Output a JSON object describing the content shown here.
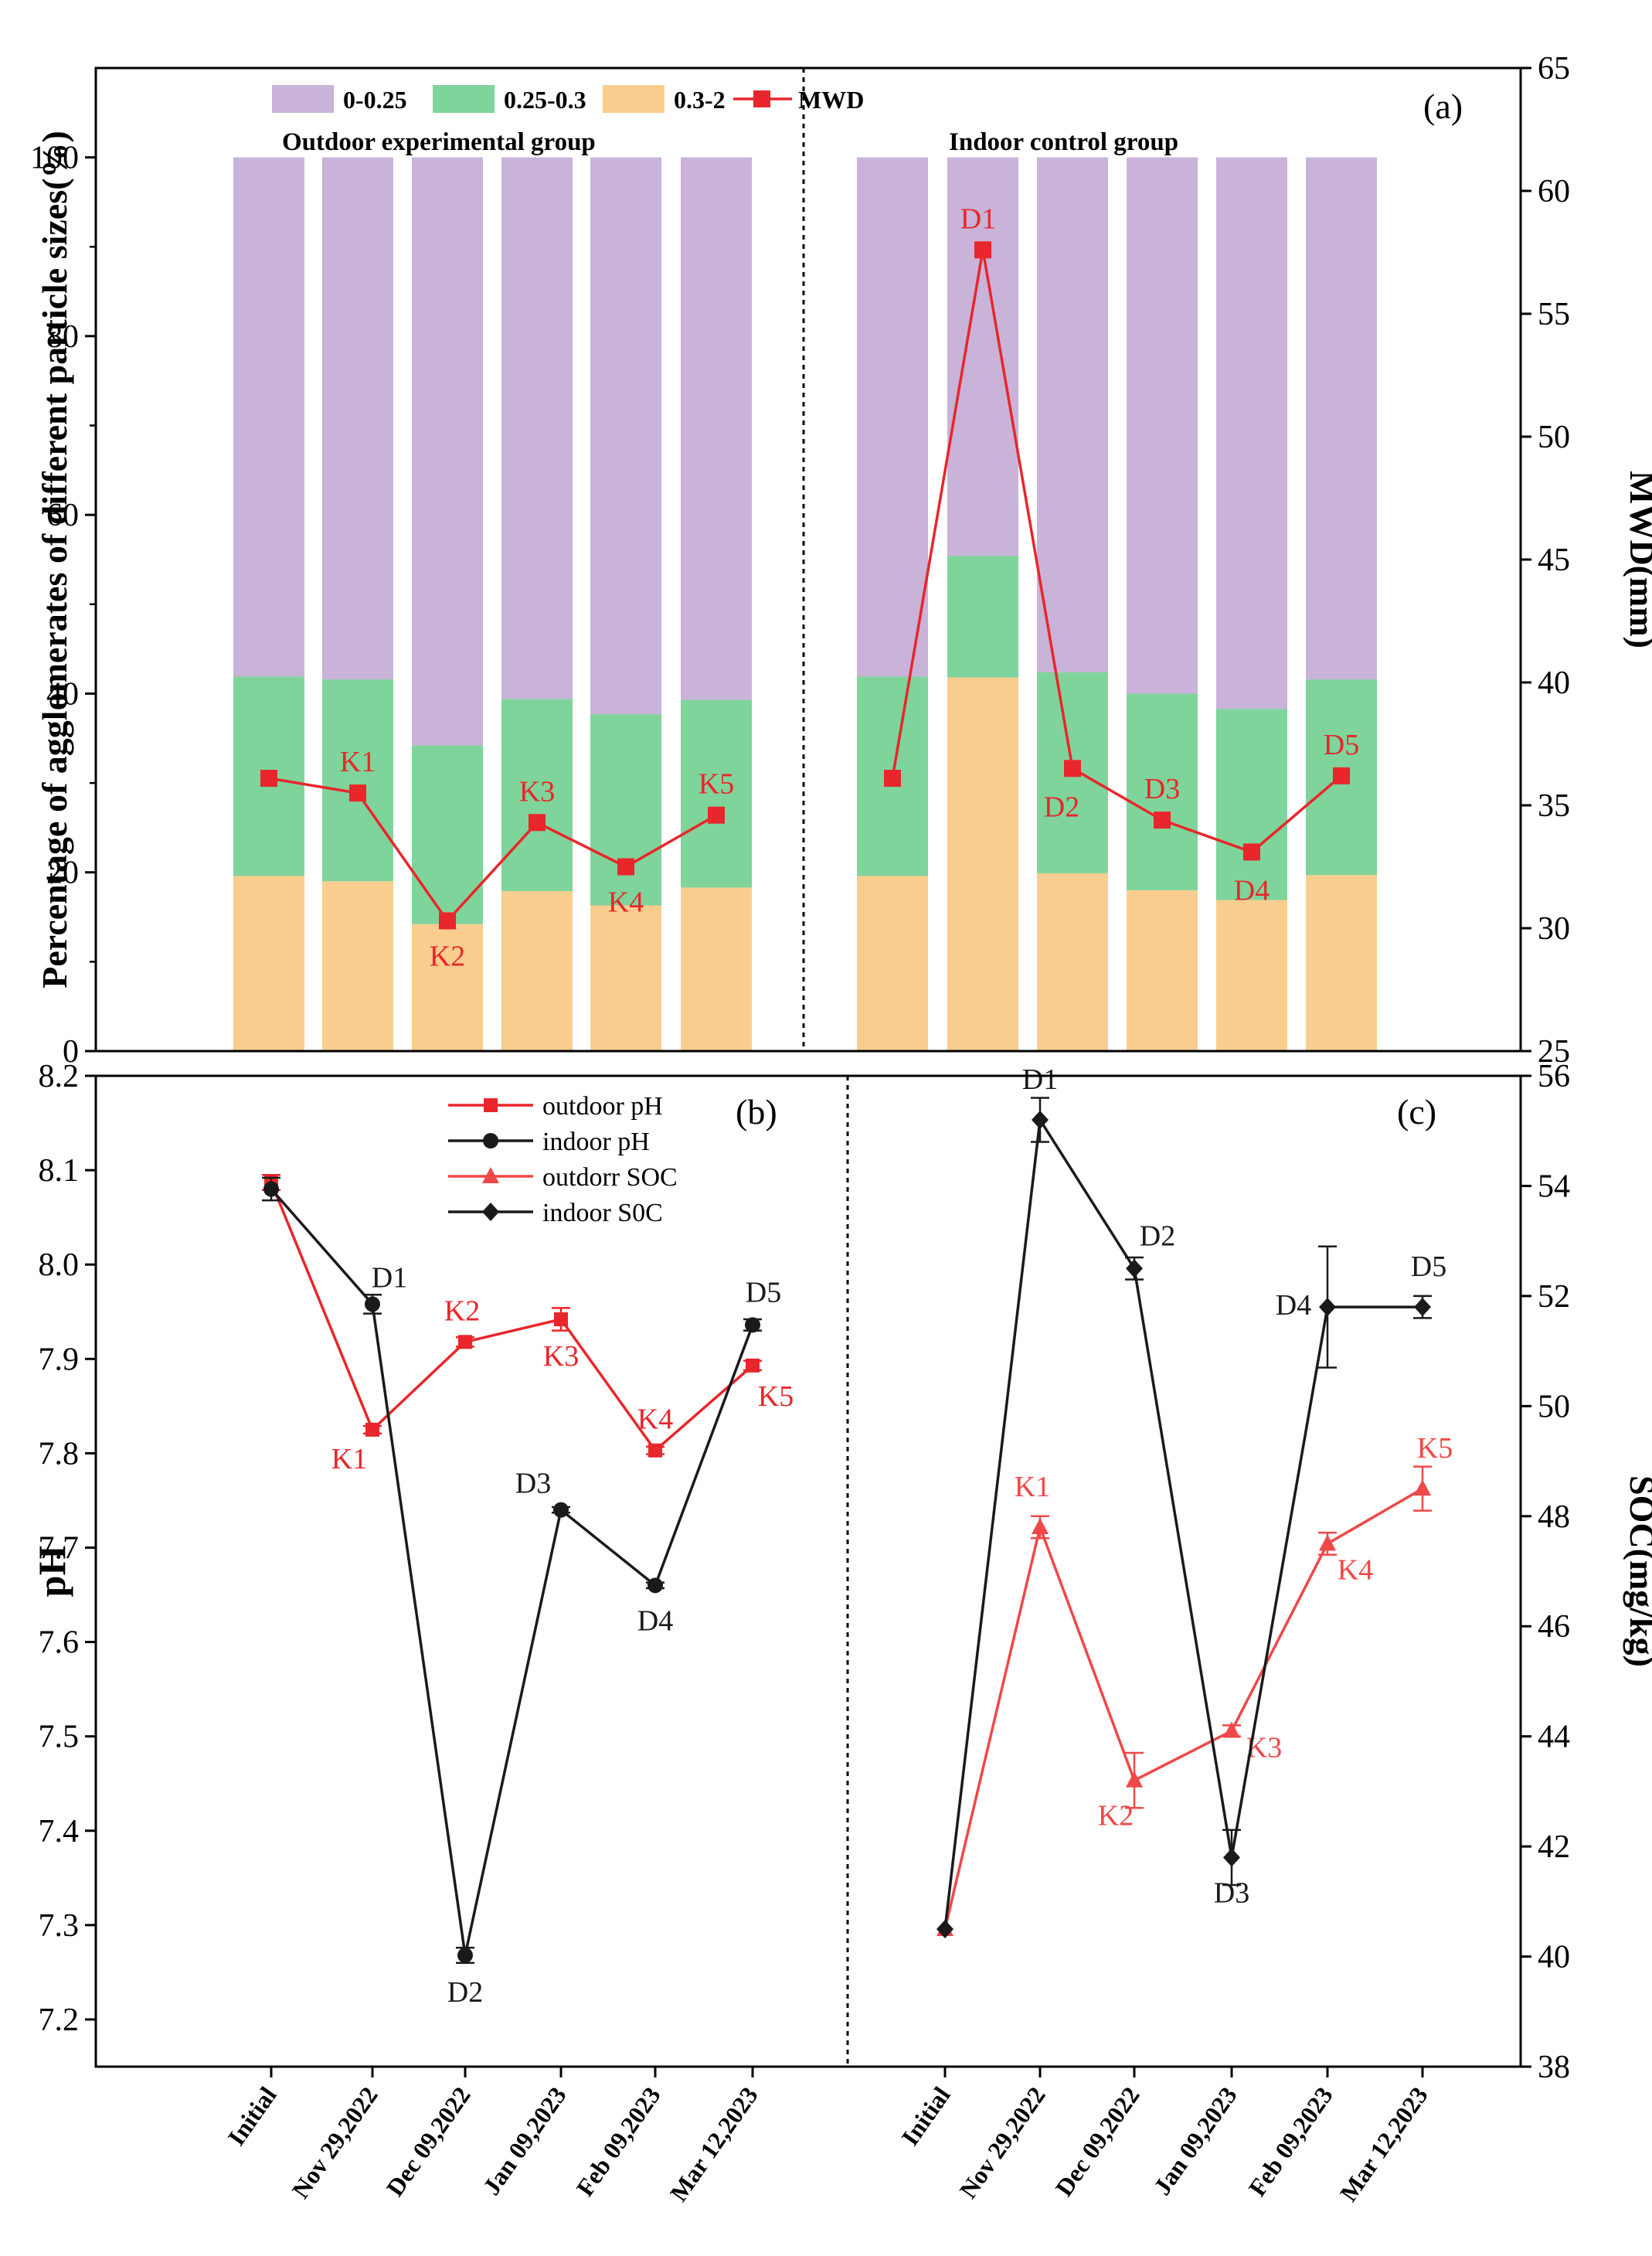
{
  "chart_data": [
    {
      "id": "a",
      "type": "bar",
      "panel_label": "(a)",
      "ylabel": "Percentage of agglomerates of different particle sizes(%)",
      "y2label": "MWD(mm)",
      "ylim": [
        0,
        110
      ],
      "yticks": [
        0,
        20,
        40,
        60,
        80,
        100
      ],
      "y2lim": [
        25,
        65
      ],
      "y2ticks": [
        25,
        30,
        35,
        40,
        45,
        50,
        55,
        60,
        65
      ],
      "stacked": true,
      "legend": [
        {
          "label": "0-0.25",
          "color": "#C9B3D9",
          "kind": "box"
        },
        {
          "label": "0.25-0.3",
          "color": "#7FD49B",
          "kind": "box"
        },
        {
          "label": "0.3-2",
          "color": "#F9CD8E",
          "kind": "box"
        },
        {
          "label": "MWD",
          "color": "#E8262B",
          "kind": "line-square"
        }
      ],
      "groups": [
        {
          "name": "Outdoor experimental group",
          "s_03_2": [
            19.6,
            19.0,
            14.2,
            17.9,
            16.3,
            18.3
          ],
          "s_025_03": [
            22.3,
            22.6,
            20.0,
            21.5,
            21.4,
            21.0
          ],
          "s_0_025": [
            58.1,
            58.4,
            65.8,
            60.6,
            62.3,
            60.7
          ],
          "mwd": [
            36.1,
            35.5,
            30.3,
            34.3,
            32.5,
            34.6
          ],
          "mwd_labels": [
            "",
            "K1",
            "K2",
            "K3",
            "K4",
            "K5"
          ]
        },
        {
          "name": "Indoor control group",
          "s_03_2": [
            19.6,
            41.8,
            19.9,
            18.0,
            16.9,
            19.7
          ],
          "s_025_03": [
            22.3,
            13.6,
            22.5,
            22.0,
            21.4,
            21.9
          ],
          "s_0_025": [
            58.1,
            44.6,
            57.6,
            60.0,
            61.7,
            58.4
          ],
          "mwd": [
            36.1,
            57.6,
            36.5,
            34.4,
            33.1,
            36.2
          ],
          "mwd_labels": [
            "",
            "D1",
            "D2",
            "D3",
            "D4",
            "D5"
          ]
        }
      ]
    },
    {
      "id": "b",
      "type": "line",
      "panel_label": "(b)",
      "ylabel": "pH",
      "ylim": [
        7.15,
        8.2
      ],
      "yticks": [
        "7.2",
        "7.3",
        "7.4",
        "7.5",
        "7.6",
        "7.7",
        "7.8",
        "7.9",
        "8.0",
        "8.1",
        "8.2"
      ],
      "categories": [
        "Initial",
        "Nov 29,2022",
        "Dec 09,2022",
        "Jan 09,2023",
        "Feb 09,2023",
        "Mar 12,2023"
      ],
      "series": [
        {
          "name": "outdoor pH",
          "color": "#E8262B",
          "marker": "square",
          "values": [
            8.087,
            7.825,
            7.918,
            7.942,
            7.803,
            7.893
          ],
          "errors": [
            0.008,
            0.004,
            0.005,
            0.012,
            0.004,
            0.005
          ],
          "labels": [
            "",
            "K1",
            "K2",
            "K3",
            "K4",
            "K5"
          ]
        },
        {
          "name": "indoor pH",
          "color": "#1a1a1a",
          "marker": "circle",
          "values": [
            8.08,
            7.958,
            7.268,
            7.74,
            7.66,
            7.936
          ],
          "errors": [
            0.012,
            0.01,
            0.008,
            0.003,
            0.003,
            0.006
          ],
          "labels": [
            "",
            "D1",
            "D2",
            "D3",
            "D4",
            "D5"
          ]
        }
      ]
    },
    {
      "id": "c",
      "type": "line",
      "panel_label": "(c)",
      "y2label": "SOC(mg/kg)",
      "y2lim": [
        38,
        56
      ],
      "y2ticks": [
        38,
        40,
        42,
        44,
        46,
        48,
        50,
        52,
        54,
        56
      ],
      "categories": [
        "Initial",
        "Nov 29,2022",
        "Dec 09,2022",
        "Jan 09,2023",
        "Feb 09,2023",
        "Mar 12,2023"
      ],
      "series": [
        {
          "name": "outdorr SOC",
          "color": "#F04848",
          "marker": "triangle",
          "values": [
            40.5,
            47.8,
            43.2,
            44.1,
            47.5,
            48.5
          ],
          "errors": [
            0.0,
            0.2,
            0.5,
            0.1,
            0.2,
            0.4
          ],
          "labels": [
            "",
            "K1",
            "K2",
            "K3",
            "K4",
            "K5"
          ]
        },
        {
          "name": "indoor S0C",
          "color": "#1a1a1a",
          "marker": "diamond",
          "values": [
            40.5,
            55.2,
            52.5,
            41.8,
            51.8,
            51.8
          ],
          "errors": [
            0.0,
            0.4,
            0.2,
            0.5,
            1.1,
            0.2
          ],
          "labels": [
            "",
            "D1",
            "D2",
            "D3",
            "D4",
            "D5"
          ]
        }
      ]
    }
  ]
}
